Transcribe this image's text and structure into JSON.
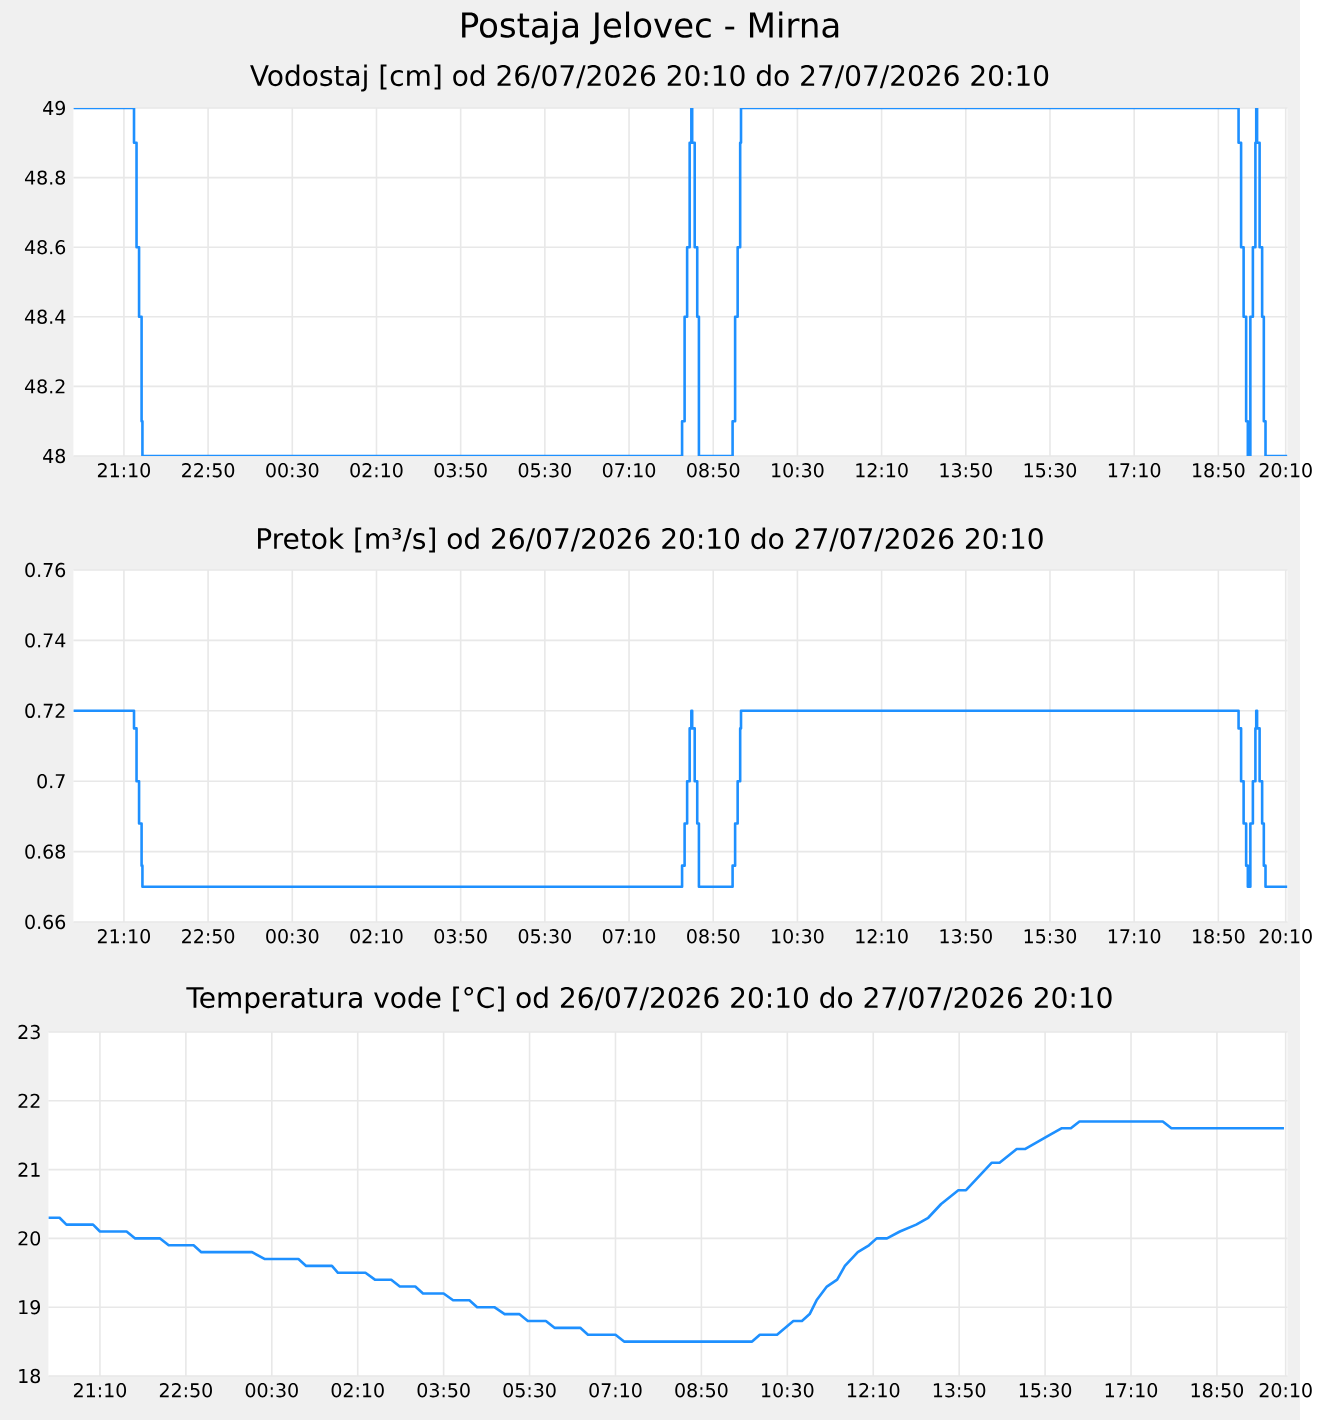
{
  "chart_data": [
    {
      "type": "step",
      "title": "Postaja Jelovec - Mirna",
      "subtitle": "Vodostaj [cm] od 26/07/2026 20:10 do 27/07/2026 20:10",
      "grid": true,
      "xlim": [
        "2026-07-26T20:10",
        "2026-07-27T20:12"
      ],
      "ylim": [
        48,
        49
      ],
      "yticks": [
        48,
        48.2,
        48.4,
        48.6,
        48.8,
        49
      ],
      "xticks": [
        {
          "value": "2026-07-26T21:10",
          "label": "21:10"
        },
        {
          "value": "2026-07-26T22:50",
          "label": "22:50"
        },
        {
          "value": "2026-07-27T00:30",
          "label": "00:30"
        },
        {
          "value": "2026-07-27T02:10",
          "label": "02:10"
        },
        {
          "value": "2026-07-27T03:50",
          "label": "03:50"
        },
        {
          "value": "2026-07-27T05:30",
          "label": "05:30"
        },
        {
          "value": "2026-07-27T07:10",
          "label": "07:10"
        },
        {
          "value": "2026-07-27T08:50",
          "label": "08:50"
        },
        {
          "value": "2026-07-27T10:30",
          "label": "10:30"
        },
        {
          "value": "2026-07-27T12:10",
          "label": "12:10"
        },
        {
          "value": "2026-07-27T13:50",
          "label": "13:50"
        },
        {
          "value": "2026-07-27T15:30",
          "label": "15:30"
        },
        {
          "value": "2026-07-27T17:10",
          "label": "17:10"
        },
        {
          "value": "2026-07-27T18:50",
          "label": "18:50"
        },
        {
          "value": "2026-07-27T20:10",
          "label": "20:10"
        }
      ],
      "series": [
        {
          "color": "#1e90ff",
          "x": [
            "2026-07-26T20:10",
            "2026-07-26T21:22",
            "2026-07-26T21:25",
            "2026-07-26T21:28",
            "2026-07-26T21:31",
            "2026-07-26T21:32",
            "2026-07-27T08:13",
            "2026-07-27T08:16",
            "2026-07-27T08:19",
            "2026-07-27T08:22",
            "2026-07-27T08:24",
            "2026-07-27T08:25",
            "2026-07-27T08:28",
            "2026-07-27T08:31",
            "2026-07-27T08:33",
            "2026-07-27T09:13",
            "2026-07-27T09:16",
            "2026-07-27T09:19",
            "2026-07-27T09:22",
            "2026-07-27T09:23",
            "2026-07-27T19:14",
            "2026-07-27T19:17",
            "2026-07-27T19:20",
            "2026-07-27T19:23",
            "2026-07-27T19:25",
            "2026-07-27T19:28",
            "2026-07-27T19:31",
            "2026-07-27T19:34",
            "2026-07-27T19:35",
            "2026-07-27T19:36",
            "2026-07-27T19:39",
            "2026-07-27T19:42",
            "2026-07-27T19:44",
            "2026-07-27T19:46",
            "2026-07-27T20:12"
          ],
          "values": [
            49,
            48.9,
            48.6,
            48.4,
            48.1,
            48,
            48.1,
            48.4,
            48.6,
            48.9,
            49,
            48.9,
            48.6,
            48.4,
            48,
            48.1,
            48.4,
            48.6,
            48.9,
            49,
            48.9,
            48.6,
            48.4,
            48.1,
            48,
            48.4,
            48.6,
            48.9,
            49,
            48.9,
            48.6,
            48.4,
            48.1,
            48,
            48
          ]
        }
      ]
    },
    {
      "type": "step",
      "title": "Pretok [m³/s] od 26/07/2026 20:10 do 27/07/2026 20:10",
      "grid": true,
      "xlim": [
        "2026-07-26T20:10",
        "2026-07-27T20:12"
      ],
      "ylim": [
        0.66,
        0.76
      ],
      "yticks": [
        0.66,
        0.68,
        0.7,
        0.72,
        0.74,
        0.76
      ],
      "xticks": [
        {
          "value": "2026-07-26T21:10",
          "label": "21:10"
        },
        {
          "value": "2026-07-26T22:50",
          "label": "22:50"
        },
        {
          "value": "2026-07-27T00:30",
          "label": "00:30"
        },
        {
          "value": "2026-07-27T02:10",
          "label": "02:10"
        },
        {
          "value": "2026-07-27T03:50",
          "label": "03:50"
        },
        {
          "value": "2026-07-27T05:30",
          "label": "05:30"
        },
        {
          "value": "2026-07-27T07:10",
          "label": "07:10"
        },
        {
          "value": "2026-07-27T08:50",
          "label": "08:50"
        },
        {
          "value": "2026-07-27T10:30",
          "label": "10:30"
        },
        {
          "value": "2026-07-27T12:10",
          "label": "12:10"
        },
        {
          "value": "2026-07-27T13:50",
          "label": "13:50"
        },
        {
          "value": "2026-07-27T15:30",
          "label": "15:30"
        },
        {
          "value": "2026-07-27T17:10",
          "label": "17:10"
        },
        {
          "value": "2026-07-27T18:50",
          "label": "18:50"
        },
        {
          "value": "2026-07-27T20:10",
          "label": "20:10"
        }
      ],
      "series": [
        {
          "color": "#1e90ff",
          "x": [
            "2026-07-26T20:10",
            "2026-07-26T21:22",
            "2026-07-26T21:25",
            "2026-07-26T21:28",
            "2026-07-26T21:31",
            "2026-07-26T21:32",
            "2026-07-27T08:13",
            "2026-07-27T08:16",
            "2026-07-27T08:19",
            "2026-07-27T08:22",
            "2026-07-27T08:24",
            "2026-07-27T08:25",
            "2026-07-27T08:28",
            "2026-07-27T08:31",
            "2026-07-27T08:33",
            "2026-07-27T09:13",
            "2026-07-27T09:16",
            "2026-07-27T09:19",
            "2026-07-27T09:22",
            "2026-07-27T09:23",
            "2026-07-27T19:14",
            "2026-07-27T19:17",
            "2026-07-27T19:20",
            "2026-07-27T19:23",
            "2026-07-27T19:25",
            "2026-07-27T19:28",
            "2026-07-27T19:31",
            "2026-07-27T19:34",
            "2026-07-27T19:35",
            "2026-07-27T19:36",
            "2026-07-27T19:39",
            "2026-07-27T19:42",
            "2026-07-27T19:44",
            "2026-07-27T19:46",
            "2026-07-27T20:12"
          ],
          "values": [
            0.72,
            0.715,
            0.7,
            0.688,
            0.676,
            0.67,
            0.676,
            0.688,
            0.7,
            0.715,
            0.72,
            0.715,
            0.7,
            0.688,
            0.67,
            0.676,
            0.688,
            0.7,
            0.715,
            0.72,
            0.715,
            0.7,
            0.688,
            0.676,
            0.67,
            0.688,
            0.7,
            0.715,
            0.72,
            0.715,
            0.7,
            0.688,
            0.676,
            0.67,
            0.67
          ]
        }
      ]
    },
    {
      "type": "line",
      "title": "Temperatura vode [°C] od 26/07/2026 20:10 do 27/07/2026 20:10",
      "grid": true,
      "xlim": [
        "2026-07-26T20:10",
        "2026-07-27T20:12"
      ],
      "ylim": [
        18,
        23
      ],
      "yticks": [
        18,
        19,
        20,
        21,
        22,
        23
      ],
      "xticks": [
        {
          "value": "2026-07-26T21:10",
          "label": "21:10"
        },
        {
          "value": "2026-07-26T22:50",
          "label": "22:50"
        },
        {
          "value": "2026-07-27T00:30",
          "label": "00:30"
        },
        {
          "value": "2026-07-27T02:10",
          "label": "02:10"
        },
        {
          "value": "2026-07-27T03:50",
          "label": "03:50"
        },
        {
          "value": "2026-07-27T05:30",
          "label": "05:30"
        },
        {
          "value": "2026-07-27T07:10",
          "label": "07:10"
        },
        {
          "value": "2026-07-27T08:50",
          "label": "08:50"
        },
        {
          "value": "2026-07-27T10:30",
          "label": "10:30"
        },
        {
          "value": "2026-07-27T12:10",
          "label": "12:10"
        },
        {
          "value": "2026-07-27T13:50",
          "label": "13:50"
        },
        {
          "value": "2026-07-27T15:30",
          "label": "15:30"
        },
        {
          "value": "2026-07-27T17:10",
          "label": "17:10"
        },
        {
          "value": "2026-07-27T18:50",
          "label": "18:50"
        },
        {
          "value": "2026-07-27T20:10",
          "label": "20:10"
        }
      ],
      "series": [
        {
          "color": "#1e90ff",
          "x": [
            "2026-07-26T20:10",
            "2026-07-26T20:23",
            "2026-07-26T20:31",
            "2026-07-26T21:02",
            "2026-07-26T21:10",
            "2026-07-26T21:41",
            "2026-07-26T21:51",
            "2026-07-26T22:20",
            "2026-07-26T22:30",
            "2026-07-26T22:59",
            "2026-07-26T23:08",
            "2026-07-27T00:07",
            "2026-07-27T00:22",
            "2026-07-27T01:01",
            "2026-07-27T01:10",
            "2026-07-27T01:40",
            "2026-07-27T01:47",
            "2026-07-27T02:19",
            "2026-07-27T02:30",
            "2026-07-27T02:49",
            "2026-07-27T02:59",
            "2026-07-27T03:17",
            "2026-07-27T03:26",
            "2026-07-27T03:50",
            "2026-07-27T04:01",
            "2026-07-27T04:20",
            "2026-07-27T04:29",
            "2026-07-27T04:49",
            "2026-07-27T05:01",
            "2026-07-27T05:18",
            "2026-07-27T05:28",
            "2026-07-27T05:49",
            "2026-07-27T05:59",
            "2026-07-27T06:29",
            "2026-07-27T06:38",
            "2026-07-27T07:10",
            "2026-07-27T07:20",
            "2026-07-27T09:49",
            "2026-07-27T09:58",
            "2026-07-27T10:18",
            "2026-07-27T10:37",
            "2026-07-27T10:47",
            "2026-07-27T10:56",
            "2026-07-27T11:04",
            "2026-07-27T11:16",
            "2026-07-27T11:28",
            "2026-07-27T11:37",
            "2026-07-27T11:52",
            "2026-07-27T12:05",
            "2026-07-27T12:14",
            "2026-07-27T12:26",
            "2026-07-27T12:41",
            "2026-07-27T13:00",
            "2026-07-27T13:14",
            "2026-07-27T13:29",
            "2026-07-27T13:49",
            "2026-07-27T13:58",
            "2026-07-27T14:13",
            "2026-07-27T14:28",
            "2026-07-27T14:37",
            "2026-07-27T14:57",
            "2026-07-27T15:07",
            "2026-07-27T15:21",
            "2026-07-27T15:35",
            "2026-07-27T15:49",
            "2026-07-27T16:00",
            "2026-07-27T16:10",
            "2026-07-27T17:47",
            "2026-07-27T17:57",
            "2026-07-27T20:08"
          ],
          "values": [
            20.3,
            20.3,
            20.2,
            20.2,
            20.1,
            20.1,
            20.0,
            20.0,
            19.9,
            19.9,
            19.8,
            19.8,
            19.7,
            19.7,
            19.6,
            19.6,
            19.5,
            19.5,
            19.4,
            19.4,
            19.3,
            19.3,
            19.2,
            19.2,
            19.1,
            19.1,
            19.0,
            19.0,
            18.9,
            18.9,
            18.8,
            18.8,
            18.7,
            18.7,
            18.6,
            18.6,
            18.5,
            18.5,
            18.6,
            18.6,
            18.8,
            18.8,
            18.9,
            19.1,
            19.3,
            19.4,
            19.6,
            19.8,
            19.9,
            20.0,
            20.0,
            20.1,
            20.2,
            20.3,
            20.5,
            20.7,
            20.7,
            20.9,
            21.1,
            21.1,
            21.3,
            21.3,
            21.4,
            21.5,
            21.6,
            21.6,
            21.7,
            21.7,
            21.6,
            21.6
          ]
        }
      ]
    }
  ]
}
